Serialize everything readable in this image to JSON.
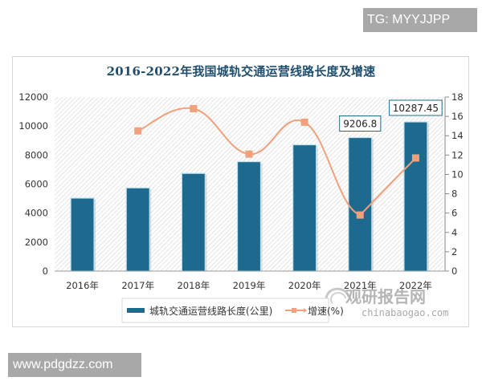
{
  "watermarks": {
    "top_tag": "TG: MYYJJPP",
    "bottom_tag": "www.pdgdzz.com",
    "source_logo_cn": "观研报告网",
    "source_logo_en": "chinabaogao.com"
  },
  "colors": {
    "bar": "#1e6a8e",
    "bar_border": "#bfe3f0",
    "line": "#f0a07a",
    "marker": "#f0a07a",
    "title": "#1f4e6e",
    "axis_text": "#333333"
  },
  "chart_data": {
    "type": "bar+line",
    "title": "2016-2022年我国城轨交通运营线路长度及增速",
    "categories": [
      "2016年",
      "2017年",
      "2018年",
      "2019年",
      "2020年",
      "2021年",
      "2022年"
    ],
    "series": [
      {
        "name": "城轨交通运营线路长度(公里)",
        "type": "bar",
        "axis": "left",
        "values": [
          5033,
          5738,
          6736,
          7545,
          8708,
          9206.8,
          10287.45
        ],
        "data_labels": [
          null,
          null,
          null,
          null,
          null,
          "9206.8",
          "10287.45"
        ]
      },
      {
        "name": "增速(%)",
        "type": "line",
        "axis": "right",
        "values": [
          null,
          14.5,
          16.8,
          12.1,
          15.4,
          5.8,
          11.7
        ]
      }
    ],
    "left_axis": {
      "min": 0,
      "max": 12000,
      "ticks": [
        "0",
        "2000",
        "4000",
        "6000",
        "8000",
        "10000",
        "12000"
      ]
    },
    "right_axis": {
      "min": 0,
      "max": 18,
      "ticks": [
        "0",
        "2",
        "4",
        "6",
        "8",
        "10",
        "12",
        "14",
        "16",
        "18"
      ]
    },
    "xlabel": "",
    "ylabel": "",
    "grid": false,
    "legend_position": "bottom",
    "legend": [
      "城轨交通运营线路长度(公里)",
      "增速(%)"
    ]
  }
}
